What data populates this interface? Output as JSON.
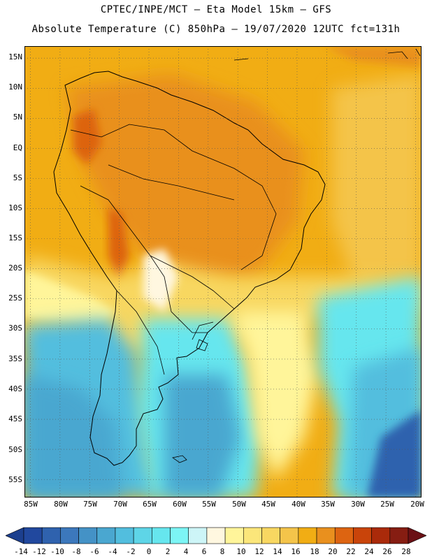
{
  "title": {
    "line1": "CPTEC/INPE/MCT –  Eta Model 15km – GFS",
    "line2": "Absolute Temperature (C) 850hPa – 19/07/2020 12UTC fct=131h"
  },
  "map": {
    "lat_labels": [
      "15N",
      "10N",
      "5N",
      "EQ",
      "5S",
      "10S",
      "15S",
      "20S",
      "25S",
      "30S",
      "35S",
      "40S",
      "45S",
      "50S",
      "55S"
    ],
    "lon_labels": [
      "85W",
      "80W",
      "75W",
      "70W",
      "65W",
      "60W",
      "55W",
      "50W",
      "45W",
      "40W",
      "35W",
      "30W",
      "25W",
      "20W"
    ],
    "lat_range": [
      -58,
      17
    ],
    "lon_range": [
      -86,
      -19
    ],
    "grid": "dotted"
  },
  "legend": {
    "tick_labels": [
      "-14",
      "-12",
      "-10",
      "-8",
      "-6",
      "-4",
      "-2",
      "0",
      "2",
      "4",
      "6",
      "8",
      "10",
      "12",
      "14",
      "16",
      "18",
      "20",
      "22",
      "24",
      "26",
      "28"
    ],
    "colors": [
      "#1c3f8e",
      "#21489e",
      "#2f62ae",
      "#3c78bc",
      "#4492c6",
      "#4aa7d0",
      "#52bede",
      "#5ed5e7",
      "#66e6ee",
      "#7cf5f5",
      "#cdf5f7",
      "#fff7e0",
      "#fff59a",
      "#fbe67a",
      "#f8d761",
      "#f4c44a",
      "#f1ad14",
      "#e9901e",
      "#dd6411",
      "#c9440a",
      "#aa2a0a",
      "#861d12",
      "#6b1015"
    ],
    "unit": "C"
  }
}
